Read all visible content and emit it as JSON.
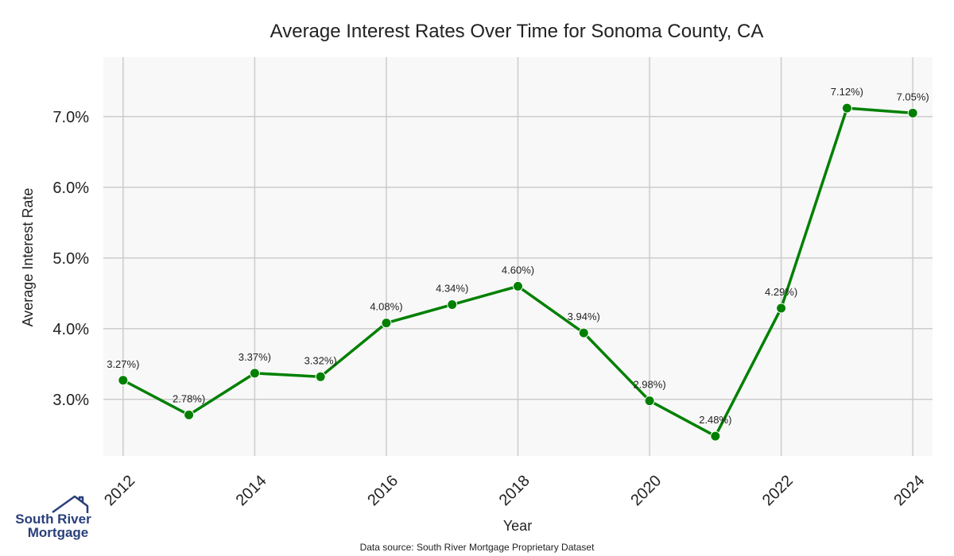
{
  "chart_data": {
    "type": "line",
    "title": "Average Interest Rates Over Time for Sonoma County, CA",
    "xlabel": "Year",
    "ylabel": "Average Interest Rate",
    "x": [
      2012,
      2013,
      2014,
      2015,
      2016,
      2017,
      2018,
      2019,
      2020,
      2021,
      2022,
      2023,
      2024
    ],
    "series": [
      {
        "values": [
          3.27,
          2.78,
          3.37,
          3.32,
          4.08,
          4.34,
          4.6,
          3.94,
          2.98,
          2.48,
          4.29,
          7.12,
          7.05
        ],
        "labels": [
          "3.27%)",
          "2.78%)",
          "3.37%)",
          "3.32%)",
          "4.08%)",
          "4.34%)",
          "4.60%)",
          "3.94%)",
          "2.98%)",
          "2.48%)",
          "4.29%)",
          "7.12%)",
          "7.05%)"
        ],
        "color": "#008000"
      }
    ],
    "xlim": [
      2011.7,
      2024.3
    ],
    "ylim": [
      2.2,
      7.84
    ],
    "xticks": [
      2012,
      2014,
      2016,
      2018,
      2020,
      2022,
      2024
    ],
    "yticks": [
      3.0,
      4.0,
      5.0,
      6.0,
      7.0
    ],
    "ytick_labels": [
      "3.0%",
      "4.0%",
      "5.0%",
      "6.0%",
      "7.0%"
    ],
    "grid": true,
    "plot_background": "#f8f8f8",
    "grid_color": "#cccccc"
  },
  "footer": {
    "source": "Data source: South River Mortgage Proprietary Dataset"
  },
  "logo": {
    "line1": "South River",
    "line2": "Mortgage",
    "color": "#2a3f7a"
  }
}
